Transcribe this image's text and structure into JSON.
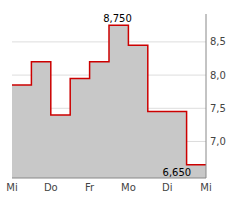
{
  "chart_data": {
    "type": "line",
    "x": [
      0.0,
      0.5,
      0.5,
      1.0,
      1.0,
      1.5,
      1.5,
      2.0,
      2.0,
      2.5,
      2.5,
      3.0,
      3.0,
      3.5,
      3.5,
      4.0,
      4.0,
      4.5,
      4.5,
      5.0
    ],
    "series": [
      {
        "type": "area",
        "color": "#c8c8c8",
        "values": [
          7.85,
          7.85,
          8.2,
          8.2,
          7.4,
          7.4,
          7.95,
          7.95,
          8.2,
          8.2,
          8.75,
          8.75,
          8.45,
          8.45,
          7.45,
          7.45,
          7.45,
          7.45,
          6.65,
          6.65
        ]
      },
      {
        "type": "line",
        "color": "#cc0000",
        "values": [
          7.85,
          7.85,
          8.2,
          8.2,
          7.4,
          7.4,
          7.95,
          7.95,
          8.2,
          8.2,
          8.75,
          8.75,
          8.45,
          8.45,
          7.45,
          7.45,
          7.45,
          7.45,
          6.65,
          6.65
        ]
      }
    ],
    "xlim": [
      0.0,
      5.0
    ],
    "xticks": [
      {
        "value": 0,
        "label": "Mi"
      },
      {
        "value": 1,
        "label": "Do"
      },
      {
        "value": 2,
        "label": "Fr"
      },
      {
        "value": 3,
        "label": "Mo"
      },
      {
        "value": 4,
        "label": "Di"
      },
      {
        "value": 5,
        "label": "Mi"
      }
    ],
    "ylim": [
      6.45,
      8.92
    ],
    "yticks": [
      {
        "value": 7.0,
        "label": "7,0"
      },
      {
        "value": 7.5,
        "label": "7,5"
      },
      {
        "value": 8.0,
        "label": "8,0"
      },
      {
        "value": 8.5,
        "label": "8,5"
      }
    ],
    "grid": true,
    "annotations": [
      {
        "text": "8,750",
        "x": 2.72,
        "y": 8.75
      },
      {
        "text": "6,650",
        "x": 4.25,
        "y": 6.65
      }
    ]
  }
}
